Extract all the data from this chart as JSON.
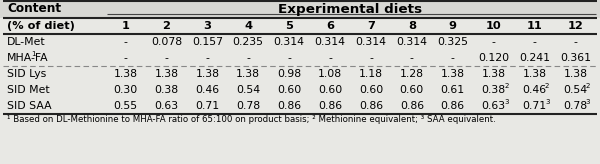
{
  "col_header_row2": [
    "(% of diet)",
    "1",
    "2",
    "3",
    "4",
    "5",
    "6",
    "7",
    "8",
    "9",
    "10",
    "11",
    "12"
  ],
  "rows": [
    {
      "label": "DL-Met",
      "values": [
        "-",
        "0.078",
        "0.157",
        "0.235",
        "0.314",
        "0.314",
        "0.314",
        "0.314",
        "0.325",
        "-",
        "-",
        "-"
      ],
      "superscripts": [
        "",
        "",
        "",
        "",
        "",
        "",
        "",
        "",
        "",
        "",
        "",
        ""
      ]
    },
    {
      "label": "MHA-FA",
      "label_sup": "1",
      "values": [
        "-",
        "-",
        "-",
        "-",
        "-",
        "-",
        "-",
        "-",
        "-",
        "0.120",
        "0.241",
        "0.361"
      ],
      "superscripts": [
        "",
        "",
        "",
        "",
        "",
        "",
        "",
        "",
        "",
        "",
        "",
        ""
      ]
    },
    {
      "label": "SID Lys",
      "label_sup": "",
      "values": [
        "1.38",
        "1.38",
        "1.38",
        "1.38",
        "0.98",
        "1.08",
        "1.18",
        "1.28",
        "1.38",
        "1.38",
        "1.38",
        "1.38"
      ],
      "superscripts": [
        "",
        "",
        "",
        "",
        "",
        "",
        "",
        "",
        "",
        "",
        "",
        ""
      ]
    },
    {
      "label": "SID Met",
      "label_sup": "",
      "values": [
        "0.30",
        "0.38",
        "0.46",
        "0.54",
        "0.60",
        "0.60",
        "0.60",
        "0.60",
        "0.61",
        "0.38",
        "0.46",
        "0.54"
      ],
      "superscripts": [
        "",
        "",
        "",
        "",
        "",
        "",
        "",
        "",
        "",
        "2",
        "2",
        "2"
      ]
    },
    {
      "label": "SID SAA",
      "label_sup": "",
      "values": [
        "0.55",
        "0.63",
        "0.71",
        "0.78",
        "0.86",
        "0.86",
        "0.86",
        "0.86",
        "0.86",
        "0.63",
        "0.71",
        "0.78"
      ],
      "superscripts": [
        "",
        "",
        "",
        "",
        "",
        "",
        "",
        "",
        "",
        "3",
        "3",
        "3"
      ]
    }
  ],
  "footnote": "¹ Based on DL-Methionine to MHA-FA ratio of 65:100 on product basis; ² Methionine equivalent; ³ SAA equivalent.",
  "bg_color": "#e8e8e4",
  "font_size": 7.8,
  "header_font_size": 8.2,
  "fig_width": 6.0,
  "fig_height": 1.64,
  "dpi": 100
}
